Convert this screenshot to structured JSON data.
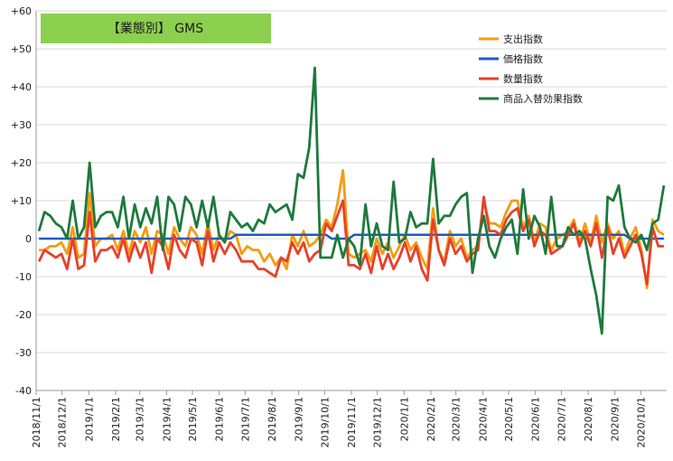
{
  "chart_data": {
    "type": "line",
    "title": "【業態別】 GMS",
    "title_bg": "#8dcf4f",
    "xlabel": "",
    "ylabel": "",
    "ylim": [
      -40,
      60
    ],
    "ytick_values": [
      -40,
      -30,
      -20,
      -10,
      0,
      10,
      20,
      30,
      40,
      50,
      60
    ],
    "ytick_labels": [
      "-40",
      "-30",
      "-20",
      "-10",
      "0",
      "+10",
      "+20",
      "+30",
      "+40",
      "+50",
      "+60"
    ],
    "x_date_start": "2018-11-01",
    "x_date_end": "2020-10-31",
    "xtick_dates": [
      "2018-11-01",
      "2018-12-01",
      "2019-01-01",
      "2019-02-01",
      "2019-03-01",
      "2019-04-01",
      "2019-05-01",
      "2019-06-01",
      "2019-07-01",
      "2019-08-01",
      "2019-09-01",
      "2019-10-01",
      "2019-11-01",
      "2019-12-01",
      "2020-01-01",
      "2020-02-01",
      "2020-03-01",
      "2020-04-01",
      "2020-05-01",
      "2020-06-01",
      "2020-07-01",
      "2020-08-01",
      "2020-09-01",
      "2020-10-01"
    ],
    "xtick_labels": [
      "2018/11/1",
      "2018/12/1",
      "2019/1/1",
      "2019/2/1",
      "2019/3/1",
      "2019/4/1",
      "2019/5/1",
      "2019/6/1",
      "2019/7/1",
      "2019/8/1",
      "2019/9/1",
      "2019/10/1",
      "2019/11/1",
      "2019/12/1",
      "2020/1/1",
      "2020/2/1",
      "2020/3/1",
      "2020/4/1",
      "2020/5/1",
      "2020/6/1",
      "2020/7/1",
      "2020/8/1",
      "2020/9/1",
      "2020/10/1"
    ],
    "grid": true,
    "legend_position": "top-right",
    "series": [
      {
        "name": "支出指数",
        "color": "#f39c12",
        "values": [
          -3,
          -3,
          -2,
          -2,
          -1,
          -4,
          3,
          -5,
          -4,
          12,
          -2,
          0,
          0,
          1,
          -3,
          2,
          -4,
          2,
          -1,
          3,
          -4,
          2,
          1,
          -4,
          3,
          0,
          -2,
          3,
          1,
          -4,
          4,
          -3,
          1,
          -1,
          2,
          1,
          -4,
          -2,
          -3,
          -3,
          -6,
          -4,
          -7,
          -5,
          -8,
          1,
          -2,
          2,
          -2,
          -1,
          1,
          5,
          3,
          9,
          18,
          -4,
          -5,
          -4,
          -3,
          -6,
          0,
          -4,
          -1,
          -5,
          -2,
          1,
          -3,
          -1,
          -5,
          -8,
          8,
          -3,
          -6,
          2,
          -2,
          0,
          -5,
          -3,
          -2,
          10,
          4,
          4,
          3,
          7,
          10,
          10,
          3,
          6,
          -1,
          4,
          3,
          -3,
          0,
          1,
          2,
          5,
          -1,
          4,
          -1,
          6,
          -1,
          4,
          0,
          2,
          -4,
          0,
          3,
          -3,
          -13,
          5,
          2,
          1
        ],
        "data_label": "",
        "notes": ""
      },
      {
        "name": "価格指数",
        "color": "#1f5bc0",
        "values": [
          0,
          0,
          0,
          0,
          0,
          0,
          0,
          0,
          0,
          0,
          0,
          0,
          0,
          0,
          0,
          0,
          0,
          0,
          0,
          0,
          0,
          0,
          0,
          0,
          0,
          0,
          0,
          0,
          0,
          0,
          0,
          0,
          0,
          0,
          0,
          1,
          1,
          1,
          1,
          1,
          1,
          1,
          1,
          1,
          1,
          1,
          1,
          1,
          1,
          1,
          1,
          1,
          0,
          0,
          0,
          0,
          1,
          1,
          1,
          1,
          1,
          1,
          1,
          1,
          1,
          1,
          1,
          1,
          1,
          1,
          1,
          1,
          1,
          1,
          1,
          1,
          1,
          1,
          1,
          1,
          1,
          1,
          1,
          1,
          1,
          1,
          1,
          1,
          1,
          1,
          1,
          1,
          1,
          1,
          1,
          1,
          1,
          1,
          1,
          1,
          1,
          1,
          1,
          1,
          1,
          0,
          0,
          0,
          0,
          0,
          0,
          0
        ],
        "data_label": "",
        "notes": ""
      },
      {
        "name": "数量指数",
        "color": "#e8402a",
        "values": [
          -6,
          -3,
          -4,
          -5,
          -4,
          -8,
          0,
          -8,
          -7,
          7,
          -6,
          -3,
          -3,
          -2,
          -5,
          0,
          -6,
          -1,
          -5,
          -1,
          -9,
          0,
          -2,
          -8,
          1,
          -3,
          -5,
          0,
          -1,
          -7,
          2,
          -6,
          -1,
          -4,
          -1,
          -3,
          -6,
          -6,
          -6,
          -8,
          -8,
          -9,
          -10,
          -5,
          -6,
          -1,
          -4,
          -1,
          -6,
          -4,
          -3,
          4,
          2,
          6,
          10,
          -7,
          -7,
          -8,
          -4,
          -9,
          -2,
          -8,
          -4,
          -8,
          -5,
          -1,
          -6,
          -2,
          -8,
          -11,
          5,
          -3,
          -7,
          0,
          -4,
          -2,
          -6,
          -4,
          -3,
          11,
          2,
          2,
          1,
          5,
          7,
          8,
          2,
          5,
          -2,
          2,
          1,
          -4,
          -3,
          -2,
          1,
          4,
          -2,
          2,
          -2,
          4,
          -5,
          3,
          -4,
          0,
          -5,
          -2,
          1,
          -4,
          -12,
          3,
          -2,
          -2
        ],
        "data_label": "",
        "notes": ""
      },
      {
        "name": "商品入替効果指数",
        "color": "#1e7a3c",
        "values": [
          2,
          7,
          6,
          4,
          3,
          0,
          10,
          0,
          3,
          20,
          3,
          6,
          7,
          7,
          3,
          11,
          0,
          9,
          3,
          8,
          4,
          11,
          -3,
          11,
          9,
          2,
          11,
          9,
          3,
          10,
          3,
          11,
          1,
          -1,
          7,
          5,
          3,
          4,
          2,
          5,
          4,
          9,
          7,
          8,
          9,
          5,
          17,
          16,
          24,
          45,
          -5,
          -5,
          -5,
          1,
          -5,
          0,
          -2,
          -7,
          9,
          -2,
          4,
          -2,
          -3,
          15,
          -1,
          0,
          7,
          3,
          4,
          4,
          21,
          4,
          6,
          6,
          9,
          11,
          12,
          -9,
          0,
          6,
          -2,
          -5,
          0,
          3,
          5,
          -4,
          13,
          0,
          6,
          3,
          -4,
          11,
          -2,
          -2,
          3,
          1,
          2,
          0,
          -8,
          -15,
          -25,
          11,
          10,
          14,
          3,
          0,
          -1,
          1,
          -3,
          4,
          5,
          14
        ],
        "data_label": "",
        "notes": ""
      }
    ]
  }
}
